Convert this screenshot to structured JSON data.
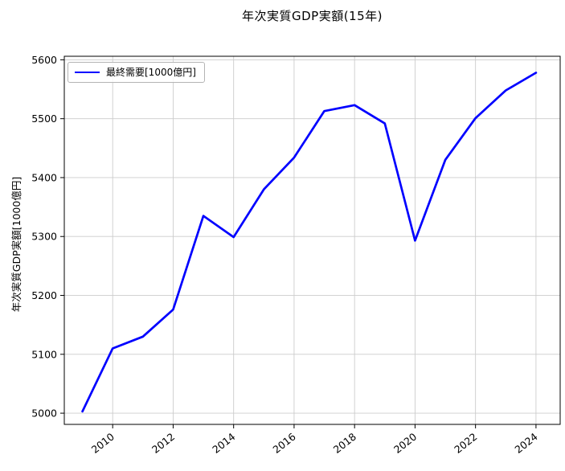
{
  "figure": {
    "background": "#ffffff"
  },
  "chart_data": {
    "type": "line",
    "title": "年次実質GDP実額(15年)",
    "xlabel": "",
    "ylabel": "年次実質GDP実額[1000億円]",
    "x": [
      2009,
      2010,
      2011,
      2012,
      2013,
      2014,
      2015,
      2016,
      2017,
      2018,
      2019,
      2020,
      2021,
      2022,
      2023,
      2024
    ],
    "series": [
      {
        "name": "最終需要[1000億円]",
        "color": "#0000ff",
        "values": [
          5003,
          5110,
          5130,
          5176,
          5335,
          5299,
          5380,
          5434,
          5513,
          5523,
          5492,
          5293,
          5430,
          5501,
          5548,
          5578
        ]
      }
    ],
    "legend": {
      "label": "最終需要[1000億円]",
      "position": "upper left"
    },
    "xticks": [
      2010,
      2012,
      2014,
      2016,
      2018,
      2020,
      2022,
      2024
    ],
    "yticks": [
      5000,
      5100,
      5200,
      5300,
      5400,
      5500,
      5600
    ],
    "xlim": [
      2008.4,
      2024.8
    ],
    "ylim": [
      4981,
      5606
    ],
    "grid": true,
    "grid_color": "#cccccc",
    "axis_color": "#000000",
    "tick_label_color": "#000000"
  }
}
